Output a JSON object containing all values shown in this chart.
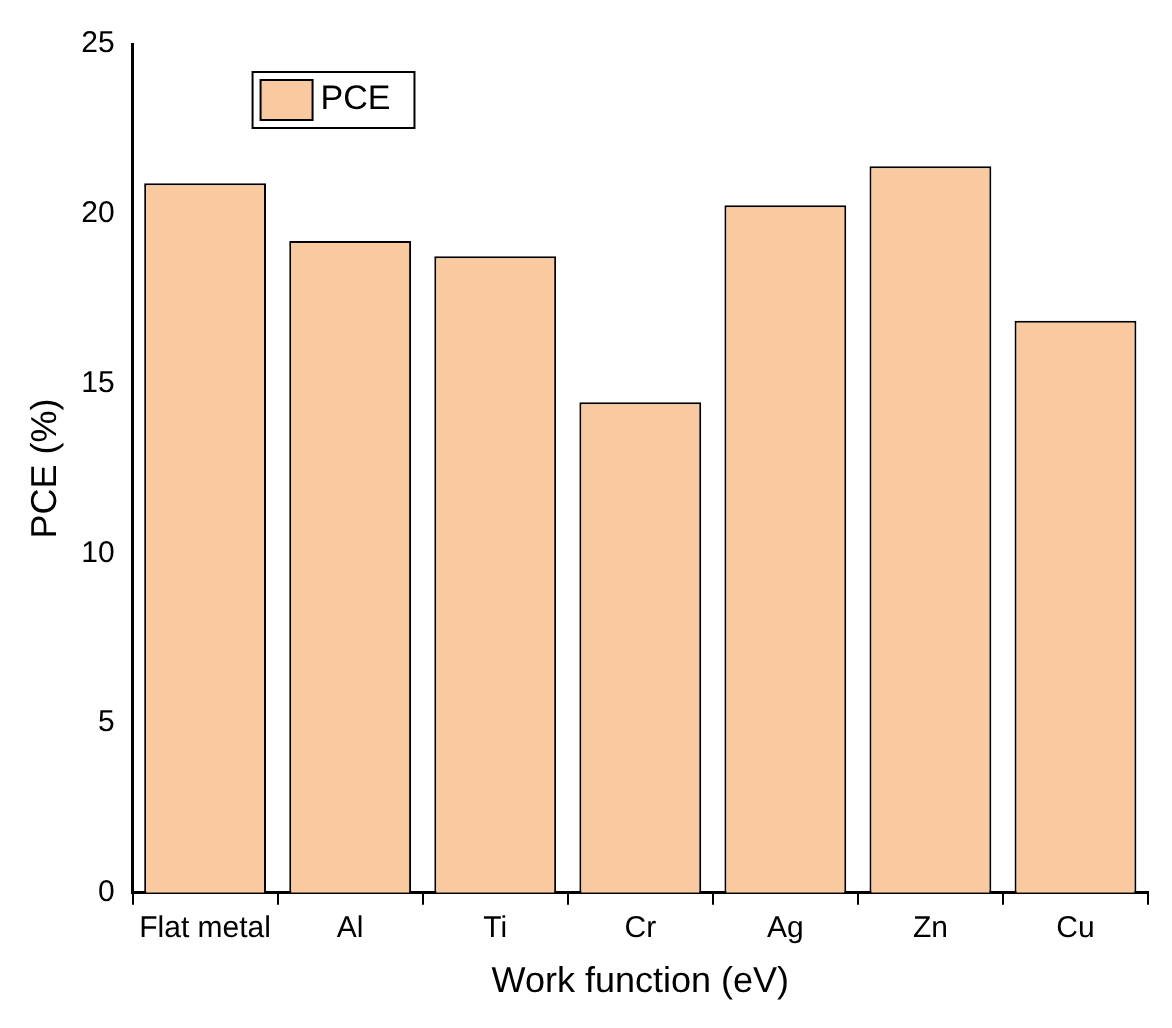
{
  "chart_data": {
    "type": "bar",
    "xlabel": "Work function (eV)",
    "ylabel": "PCE (%)",
    "categories": [
      "Flat metal",
      "Al",
      "Ti",
      "Cr",
      "Ag",
      "Zn",
      "Cu"
    ],
    "series": [
      {
        "name": "PCE",
        "color": "#f9c9a0",
        "values": [
          20.9,
          19.2,
          18.75,
          14.45,
          20.25,
          21.4,
          16.85
        ]
      }
    ],
    "ylim": [
      0,
      25
    ],
    "yticks": [
      0,
      5,
      10,
      15,
      20,
      25
    ],
    "grid": false,
    "legend": "top left"
  }
}
